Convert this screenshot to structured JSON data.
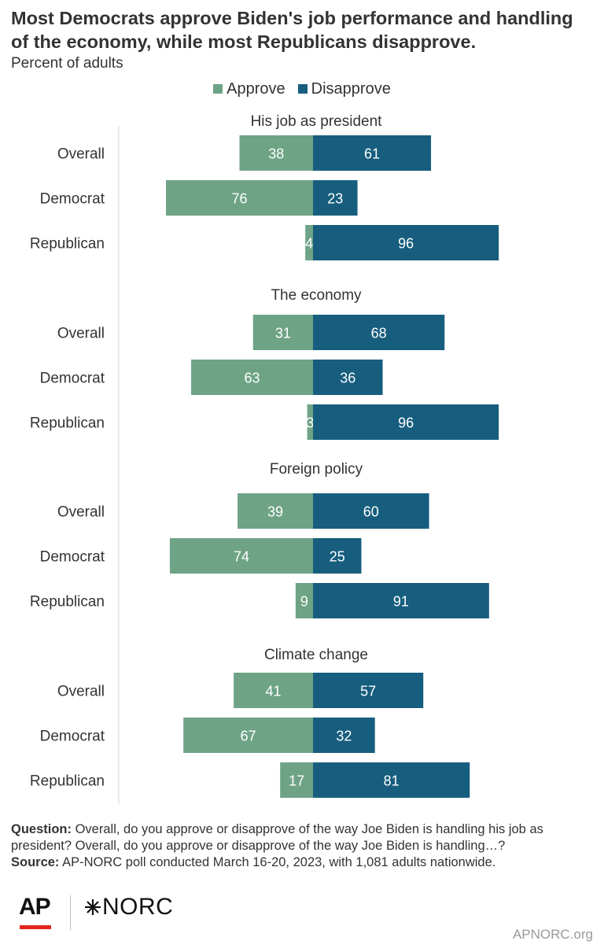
{
  "title": "Most Democrats approve Biden's job performance and handling of the economy, while most Republicans disapprove.",
  "subtitle": "Percent of adults",
  "legend": {
    "approve_label": "Approve",
    "disapprove_label": "Disapprove"
  },
  "colors": {
    "approve": "#6ea386",
    "disapprove": "#175e7e",
    "axis": "#d6d6d6",
    "ap_red": "#e4241d"
  },
  "chart_data": {
    "type": "bar",
    "orientation": "horizontal-diverging",
    "categories": [
      "Overall",
      "Democrat",
      "Republican"
    ],
    "panels": [
      {
        "title": "His job as president",
        "series": [
          {
            "name": "Approve",
            "values": [
              38,
              76,
              4
            ]
          },
          {
            "name": "Disapprove",
            "values": [
              61,
              23,
              96
            ]
          }
        ]
      },
      {
        "title": "The economy",
        "series": [
          {
            "name": "Approve",
            "values": [
              31,
              63,
              3
            ]
          },
          {
            "name": "Disapprove",
            "values": [
              68,
              36,
              96
            ]
          }
        ]
      },
      {
        "title": "Foreign policy",
        "series": [
          {
            "name": "Approve",
            "values": [
              39,
              74,
              9
            ]
          },
          {
            "name": "Disapprove",
            "values": [
              60,
              25,
              91
            ]
          }
        ]
      },
      {
        "title": "Climate change",
        "series": [
          {
            "name": "Approve",
            "values": [
              41,
              67,
              17
            ]
          },
          {
            "name": "Disapprove",
            "values": [
              57,
              32,
              81
            ]
          }
        ]
      }
    ],
    "xlim": [
      -100,
      100
    ],
    "grid": false,
    "legend_position": "top"
  },
  "footer": {
    "question_label": "Question:",
    "question_text": "Overall, do you approve or disapprove of the way Joe Biden is handling his job as president? Overall, do you approve or disapprove of the way Joe Biden is handling…?",
    "source_label": "Source:",
    "source_text": "AP-NORC poll conducted March 16-20, 2023, with 1,081 adults nationwide."
  },
  "branding": {
    "ap_logo": "AP",
    "norc_logo": "NORC",
    "norc_mark_icon": "asterisk-star-icon",
    "site": "APNORC.org"
  }
}
